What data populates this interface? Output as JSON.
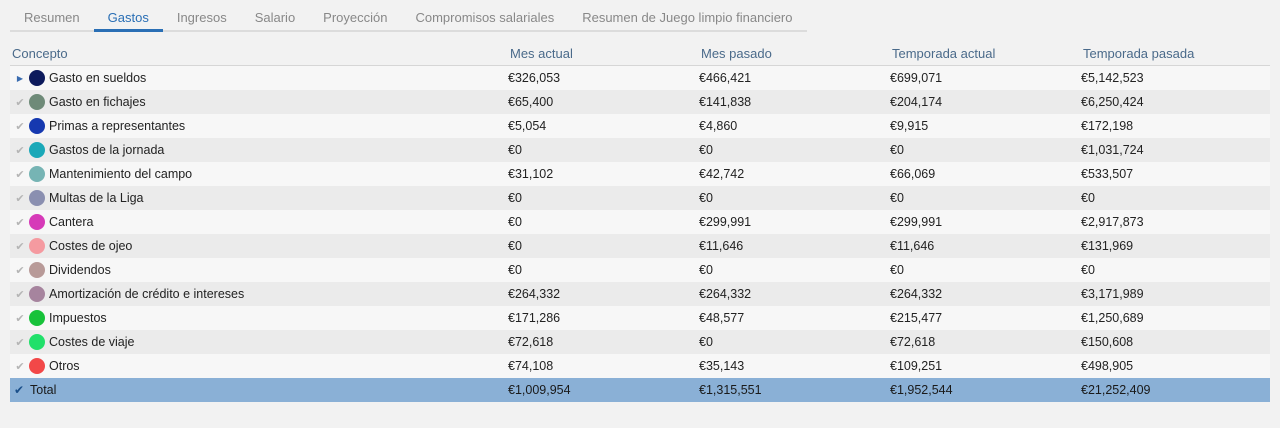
{
  "tabs": [
    {
      "label": "Resumen",
      "active": false
    },
    {
      "label": "Gastos",
      "active": true
    },
    {
      "label": "Ingresos",
      "active": false
    },
    {
      "label": "Salario",
      "active": false
    },
    {
      "label": "Proyección",
      "active": false
    },
    {
      "label": "Compromisos salariales",
      "active": false
    },
    {
      "label": "Resumen de Juego limpio financiero",
      "active": false
    }
  ],
  "table": {
    "headers": [
      "Concepto",
      "Mes actual",
      "Mes pasado",
      "Temporada actual",
      "Temporada pasada"
    ],
    "rows": [
      {
        "concept": "Gasto en sueldos",
        "color": "#0d1a5c",
        "mes_actual": "€326,053",
        "mes_pasado": "€466,421",
        "temp_actual": "€699,071",
        "temp_pasada": "€5,142,523"
      },
      {
        "concept": "Gasto en fichajes",
        "color": "#6e8a78",
        "mes_actual": "€65,400",
        "mes_pasado": "€141,838",
        "temp_actual": "€204,174",
        "temp_pasada": "€6,250,424"
      },
      {
        "concept": "Primas a representantes",
        "color": "#1639b0",
        "mes_actual": "€5,054",
        "mes_pasado": "€4,860",
        "temp_actual": "€9,915",
        "temp_pasada": "€172,198"
      },
      {
        "concept": "Gastos de la jornada",
        "color": "#1aa8b8",
        "mes_actual": "€0",
        "mes_pasado": "€0",
        "temp_actual": "€0",
        "temp_pasada": "€1,031,724"
      },
      {
        "concept": "Mantenimiento del campo",
        "color": "#76b4b4",
        "mes_actual": "€31,102",
        "mes_pasado": "€42,742",
        "temp_actual": "€66,069",
        "temp_pasada": "€533,507"
      },
      {
        "concept": "Multas de la Liga",
        "color": "#8a8fb0",
        "mes_actual": "€0",
        "mes_pasado": "€0",
        "temp_actual": "€0",
        "temp_pasada": "€0"
      },
      {
        "concept": "Cantera",
        "color": "#d63ab8",
        "mes_actual": "€0",
        "mes_pasado": "€299,991",
        "temp_actual": "€299,991",
        "temp_pasada": "€2,917,873"
      },
      {
        "concept": "Costes de ojeo",
        "color": "#f59aa0",
        "mes_actual": "€0",
        "mes_pasado": "€11,646",
        "temp_actual": "€11,646",
        "temp_pasada": "€131,969"
      },
      {
        "concept": "Dividendos",
        "color": "#b89a98",
        "mes_actual": "€0",
        "mes_pasado": "€0",
        "temp_actual": "€0",
        "temp_pasada": "€0"
      },
      {
        "concept": "Amortización de crédito e intereses",
        "color": "#a6849e",
        "mes_actual": "€264,332",
        "mes_pasado": "€264,332",
        "temp_actual": "€264,332",
        "temp_pasada": "€3,171,989"
      },
      {
        "concept": "Impuestos",
        "color": "#18c23a",
        "mes_actual": "€171,286",
        "mes_pasado": "€48,577",
        "temp_actual": "€215,477",
        "temp_pasada": "€1,250,689"
      },
      {
        "concept": "Costes de viaje",
        "color": "#20e06a",
        "mes_actual": "€72,618",
        "mes_pasado": "€0",
        "temp_actual": "€72,618",
        "temp_pasada": "€150,608"
      },
      {
        "concept": "Otros",
        "color": "#f24848",
        "mes_actual": "€74,108",
        "mes_pasado": "€35,143",
        "temp_actual": "€109,251",
        "temp_pasada": "€498,905"
      }
    ],
    "total": {
      "concept": "Total",
      "mes_actual": "€1,009,954",
      "mes_pasado": "€1,315,551",
      "temp_actual": "€1,952,544",
      "temp_pasada": "€21,252,409"
    }
  },
  "icons": {
    "expand": "triangle-right-icon",
    "check_faded": "check-icon",
    "check_total": "check-icon"
  },
  "colors": {
    "accent": "#2a6fb5",
    "total_row": "#8ab0d6"
  }
}
